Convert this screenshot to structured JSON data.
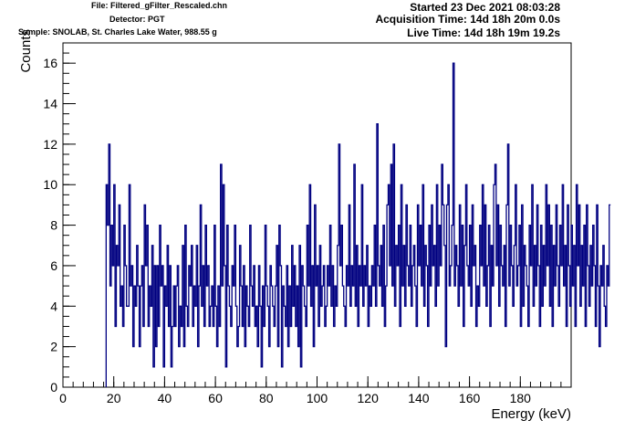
{
  "header": {
    "file": "File: Filtered_gFilter_Rescaled.chn",
    "detector": "Detector: PGT",
    "sample": "Sample: SNOLAB, St. Charles Lake Water, 988.55 g",
    "started": "Started 23 Dec 2021 08:03:28",
    "acquisition": "Acquisition Time: 14d 18h 20m 0.0s",
    "live": "Live Time: 14d 18h 19m 19.2s"
  },
  "colors": {
    "line": "#000080",
    "axis": "#000000"
  },
  "chart_data": {
    "type": "histogram-step",
    "xlabel": "Energy (keV)",
    "ylabel": "Counts",
    "xlim": [
      0,
      200
    ],
    "ylim": [
      0,
      17
    ],
    "x_ticks": [
      0,
      20,
      40,
      60,
      80,
      100,
      120,
      140,
      160,
      180
    ],
    "y_ticks": [
      0,
      2,
      4,
      6,
      8,
      10,
      12,
      14,
      16
    ],
    "bin_width": 0.5,
    "x_start": 17.0,
    "counts": [
      10,
      8,
      12,
      5,
      8,
      6,
      10,
      3,
      7,
      6,
      9,
      4,
      5,
      3,
      8,
      6,
      4,
      4,
      10,
      5,
      6,
      2,
      5,
      4,
      7,
      5,
      2,
      5,
      6,
      3,
      9,
      6,
      8,
      3,
      5,
      4,
      7,
      1,
      6,
      2,
      6,
      3,
      8,
      5,
      6,
      1,
      5,
      4,
      7,
      3,
      6,
      1,
      3,
      5,
      3,
      5,
      6,
      2,
      4,
      3,
      7,
      2,
      8,
      4,
      3,
      6,
      5,
      7,
      3,
      5,
      4,
      7,
      2,
      5,
      9,
      4,
      6,
      3,
      8,
      5,
      6,
      3,
      4,
      5,
      3,
      8,
      4,
      2,
      5,
      3,
      11,
      5,
      10,
      6,
      1,
      8,
      5,
      4,
      3,
      6,
      5,
      8,
      4,
      2,
      3,
      7,
      5,
      3,
      6,
      2,
      5,
      4,
      3,
      8,
      5,
      4,
      6,
      3,
      4,
      2,
      6,
      4,
      1,
      5,
      3,
      8,
      5,
      4,
      2,
      6,
      5,
      4,
      3,
      5,
      7,
      2,
      8,
      6,
      1,
      5,
      4,
      3,
      6,
      2,
      5,
      3,
      7,
      4,
      6,
      3,
      5,
      2,
      7,
      1,
      6,
      5,
      4,
      3,
      8,
      5,
      10,
      4,
      6,
      2,
      9,
      5,
      6,
      3,
      7,
      4,
      5,
      6,
      3,
      4,
      6,
      5,
      8,
      4,
      6,
      3,
      5,
      4,
      7,
      12,
      6,
      8,
      5,
      4,
      3,
      6,
      5,
      9,
      4,
      6,
      5,
      11,
      4,
      7,
      3,
      6,
      5,
      10,
      4,
      6,
      5,
      7,
      3,
      5,
      4,
      6,
      5,
      8,
      4,
      13,
      6,
      5,
      7,
      4,
      8,
      3,
      5,
      9,
      10,
      6,
      11,
      5,
      12,
      4,
      7,
      6,
      8,
      3,
      10,
      5,
      7,
      4,
      9,
      6,
      5,
      8,
      4,
      6,
      7,
      5,
      3,
      9,
      6,
      8,
      5,
      10,
      4,
      7,
      6,
      3,
      8,
      5,
      9,
      6,
      7,
      4,
      10,
      5,
      8,
      6,
      11,
      9,
      7,
      2,
      9,
      10,
      5,
      6,
      8,
      16,
      5,
      7,
      6,
      4,
      9,
      5,
      8,
      3,
      7,
      10,
      6,
      5,
      8,
      4,
      9,
      6,
      7,
      3,
      5,
      4,
      8,
      6,
      10,
      5,
      9,
      4,
      6,
      8,
      3,
      7,
      5,
      10,
      11,
      6,
      9,
      4,
      8,
      6,
      5,
      7,
      3,
      9,
      12,
      5,
      8,
      6,
      4,
      7,
      10,
      5,
      6,
      8,
      3,
      9,
      4,
      7,
      6,
      5,
      3,
      8,
      6,
      10,
      4,
      7,
      5,
      9,
      6,
      3,
      8,
      4,
      7,
      5,
      10,
      6,
      9,
      4,
      8,
      3,
      7,
      5,
      9,
      6,
      4,
      8,
      6,
      10,
      5,
      7,
      3,
      9,
      6,
      4,
      8,
      5,
      7,
      3,
      10,
      6,
      9,
      4,
      7,
      5,
      8,
      3,
      9,
      6,
      4,
      7,
      5,
      8,
      6,
      3,
      9,
      5,
      2,
      6,
      5,
      7,
      4,
      3,
      6,
      5,
      9
    ]
  }
}
